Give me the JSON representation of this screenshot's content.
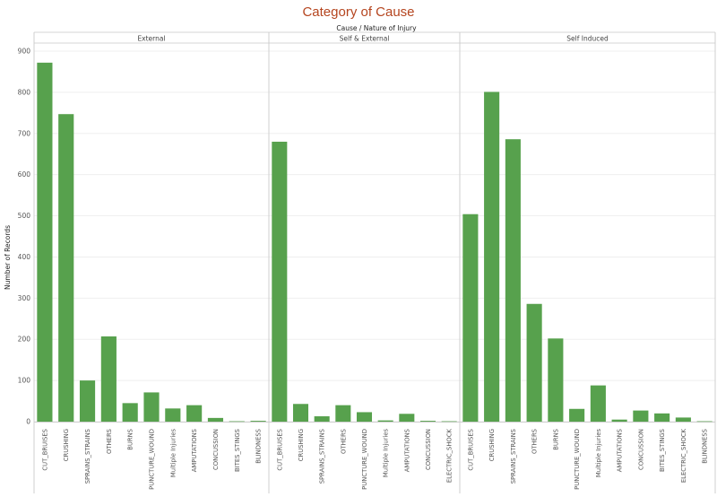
{
  "chart_data": {
    "type": "bar",
    "title": "Category of Cause",
    "column_header": "Cause  /  Nature of Injury",
    "ylabel": "Number of Records",
    "ylim": [
      0,
      900
    ],
    "yticks": [
      0,
      100,
      200,
      300,
      400,
      500,
      600,
      700,
      800,
      900
    ],
    "grid": true,
    "bar_color": "#57a14d",
    "title_color": "#b5451f",
    "panels": [
      {
        "name": "External",
        "categories": [
          "CUT_BRUISES",
          "CRUSHING",
          "SPRAINS_STRAINS",
          "OTHERS",
          "BURNS",
          "PUNCTURE_WOUND",
          "Multiple Injuries",
          "AMPUTATIONS",
          "CONCUSSION",
          "BITES_STINGS",
          "BLINDNESS"
        ],
        "values": [
          872,
          747,
          100,
          207,
          45,
          71,
          32,
          40,
          9,
          1,
          2
        ]
      },
      {
        "name": "Self & External",
        "categories": [
          "CUT_BRUISES",
          "CRUSHING",
          "SPRAINS_STRAINS",
          "OTHERS",
          "PUNCTURE_WOUND",
          "Multiple Injuries",
          "AMPUTATIONS",
          "CONCUSSION",
          "ELECTRIC_SHOCK"
        ],
        "values": [
          680,
          43,
          13,
          40,
          23,
          3,
          19,
          2,
          1
        ]
      },
      {
        "name": "Self Induced",
        "categories": [
          "CUT_BRUISES",
          "CRUSHING",
          "SPRAINS_STRAINS",
          "OTHERS",
          "BURNS",
          "PUNCTURE_WOUND",
          "Multiple Injuries",
          "AMPUTATIONS",
          "CONCUSSION",
          "BITES_STINGS",
          "ELECTRIC_SHOCK",
          "BLINDNESS"
        ],
        "values": [
          504,
          801,
          686,
          286,
          202,
          31,
          88,
          5,
          27,
          20,
          10,
          1
        ]
      }
    ]
  }
}
